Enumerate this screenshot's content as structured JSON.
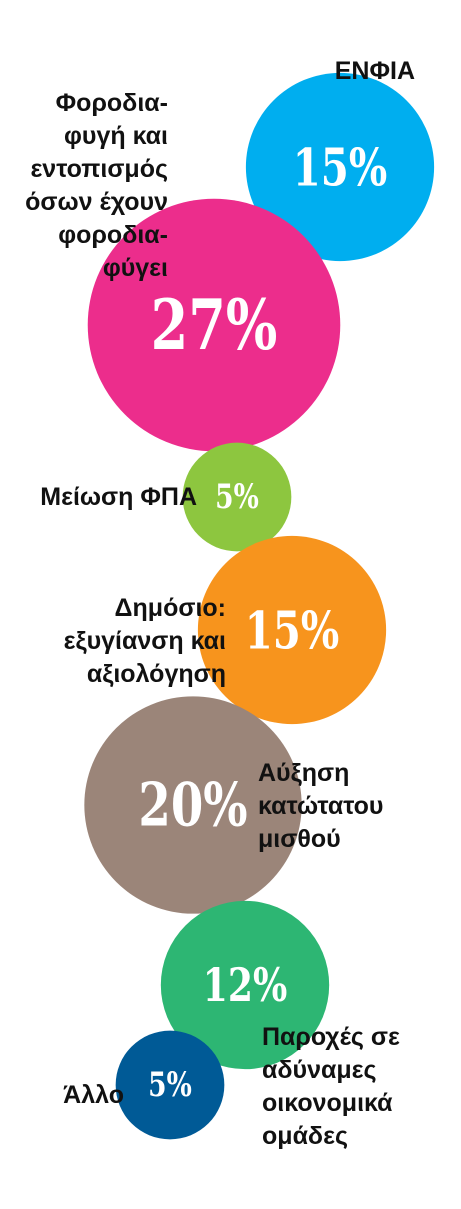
{
  "chart_data": {
    "type": "bubble",
    "categories": [
      "ΕΝΦΙΑ",
      "Φοροδια-\nφυγή και\nεντοπισμός\nόσων έχουν\nφοροδια-\nφύγει",
      "Μείωση ΦΠΑ",
      "Δημόσιο:\nεξυγίανση και\nαξιολόγηση",
      "Αύξηση\nκατώτατου\nμισθού",
      "Παροχές σε\nαδύναμες\nοικονομικά\nομάδες",
      "Άλλο"
    ],
    "values": [
      15,
      27,
      5,
      15,
      20,
      12,
      5
    ],
    "value_labels": [
      "15%",
      "27%",
      "5%",
      "15%",
      "20%",
      "12%",
      "5%"
    ],
    "colors": [
      "#00aeef",
      "#ec2d8c",
      "#8dc63f",
      "#f7941d",
      "#9b8579",
      "#2db673",
      "#005a96"
    ]
  }
}
